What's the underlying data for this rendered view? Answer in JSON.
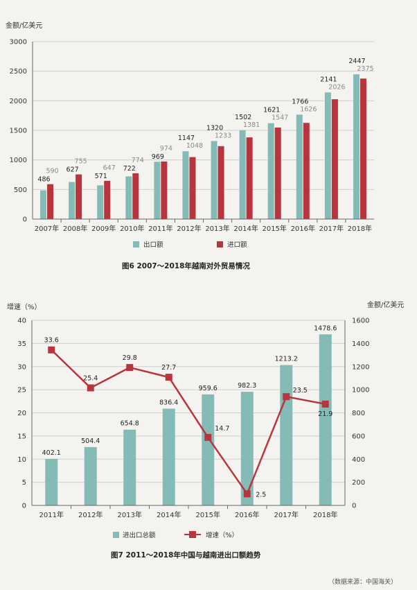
{
  "colors": {
    "teal": "#85bbb6",
    "red": "#b8353d",
    "grid": "#cfcfcf",
    "export_label": "#222222",
    "import_label": "#8a8a8a"
  },
  "chart_data": [
    {
      "type": "bar",
      "ylabel": "金额/亿美元",
      "ylim": [
        0,
        3000
      ],
      "yticks": [
        0,
        500,
        1000,
        1500,
        2000,
        2500,
        3000
      ],
      "categories": [
        "2007年",
        "2008年",
        "2009年",
        "2010年",
        "2011年",
        "2012年",
        "2013年",
        "2014年",
        "2015年",
        "2016年",
        "2017年",
        "2018年"
      ],
      "series": [
        {
          "name": "出口额",
          "color": "#85bbb6",
          "values": [
            486,
            627,
            571,
            722,
            969,
            1147,
            1320,
            1502,
            1621,
            1766,
            2141,
            2447
          ]
        },
        {
          "name": "进口额",
          "color": "#b8353d",
          "values": [
            590,
            755,
            647,
            774,
            974,
            1048,
            1233,
            1381,
            1547,
            1626,
            2026,
            2375
          ]
        }
      ],
      "legend_position": "bottom",
      "caption": "图6  2007～2018年越南对外贸易情况"
    },
    {
      "type": "bar+line",
      "ylabel_left": "增速（%）",
      "ylabel_right": "金额/亿美元",
      "ylim_left": [
        0,
        40
      ],
      "yticks_left": [
        0,
        5,
        10,
        15,
        20,
        25,
        30,
        35,
        40
      ],
      "ylim_right": [
        0,
        1600
      ],
      "yticks_right": [
        0,
        200,
        400,
        600,
        800,
        1000,
        1200,
        1400,
        1600
      ],
      "categories": [
        "2011年",
        "2012年",
        "2013年",
        "2014年",
        "2015年",
        "2016年",
        "2017年",
        "2018年"
      ],
      "series": [
        {
          "name": "进出口总额",
          "type": "bar",
          "axis": "right",
          "color": "#85bbb6",
          "values": [
            402.1,
            504.4,
            654.8,
            836.4,
            959.6,
            982.3,
            1213.2,
            1478.6
          ]
        },
        {
          "name": "增速（%）",
          "type": "line",
          "axis": "left",
          "color": "#b8353d",
          "values": [
            33.6,
            25.4,
            29.8,
            27.7,
            14.7,
            2.5,
            23.5,
            21.9
          ]
        }
      ],
      "legend_position": "bottom",
      "caption": "图7  2011～2018年中国与越南进出口额趋势"
    }
  ],
  "source_note": "（数据来源：中国海关）"
}
